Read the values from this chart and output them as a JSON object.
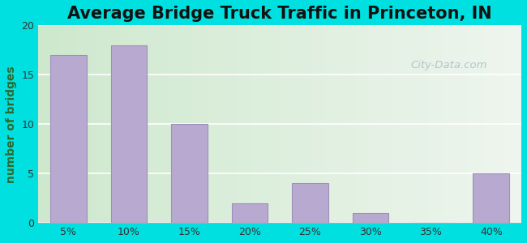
{
  "title": "Average Bridge Truck Traffic in Princeton, IN",
  "categories": [
    "5%",
    "10%",
    "15%",
    "20%",
    "25%",
    "30%",
    "35%",
    "40%"
  ],
  "values": [
    17,
    18,
    10,
    2,
    4,
    1,
    0,
    5
  ],
  "bar_color": "#b8a9d0",
  "bar_edge_color": "#9e8fbb",
  "ylabel": "number of bridges",
  "ylim": [
    0,
    20
  ],
  "yticks": [
    0,
    5,
    10,
    15,
    20
  ],
  "figure_bg": "#00e0e0",
  "plot_bg_left": "#cde8cd",
  "plot_bg_right": "#eef5ee",
  "title_fontsize": 15,
  "axis_label_fontsize": 10,
  "tick_fontsize": 9,
  "watermark_text": "City-Data.com",
  "watermark_color": "#aabccc"
}
